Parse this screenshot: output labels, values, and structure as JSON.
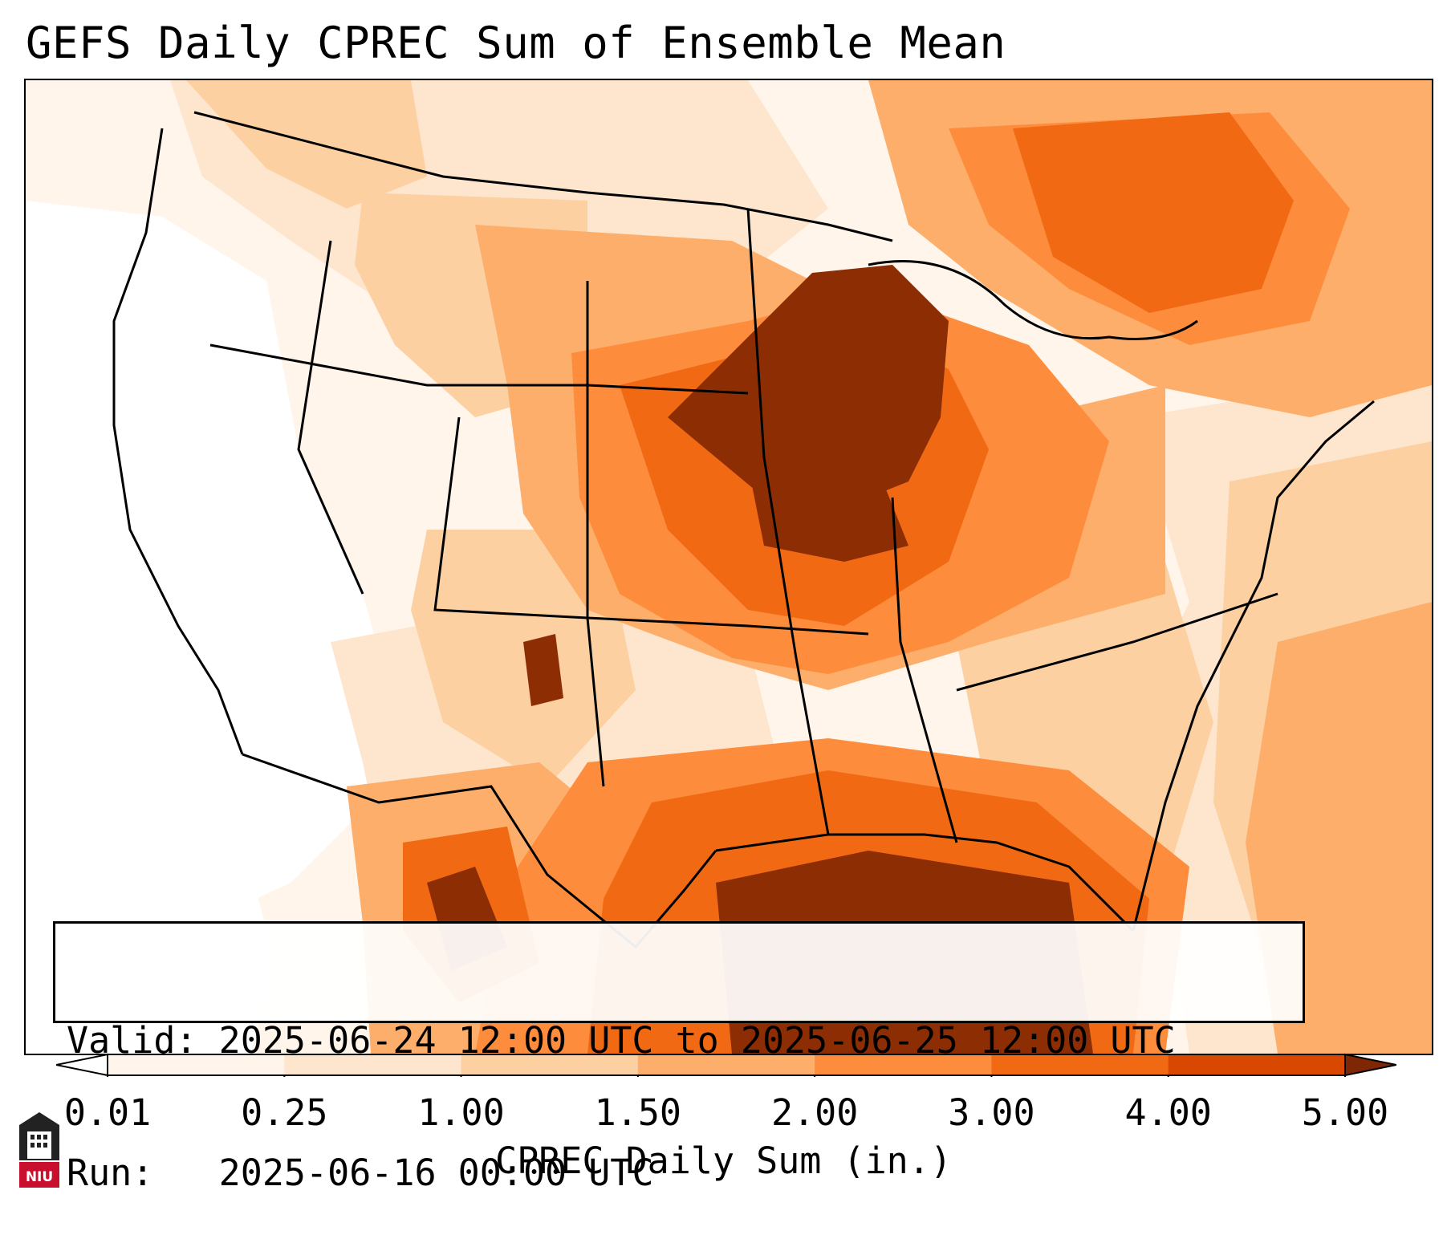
{
  "title": "GEFS Daily CPREC Sum of Ensemble Mean",
  "info": {
    "valid_line": "Valid: 2025-06-24 12:00 UTC to 2025-06-25 12:00 UTC",
    "run_line": "Run:   2025-06-16 00:00 UTC"
  },
  "colorbar": {
    "label": "CPREC Daily Sum (in.)",
    "ticks": [
      "0.01",
      "0.25",
      "1.00",
      "1.50",
      "2.00",
      "3.00",
      "4.00",
      "5.00"
    ],
    "colors": [
      "#fff5eb",
      "#fee6ce",
      "#fdd0a2",
      "#fdae6b",
      "#fd8d3c",
      "#f16913",
      "#d94801",
      "#8c2d04"
    ],
    "under_color": "#ffffff",
    "over_color": "#7f2704"
  },
  "logo": {
    "text": "NIU"
  },
  "icons": {
    "logo": "niu-tower-logo-icon"
  }
}
